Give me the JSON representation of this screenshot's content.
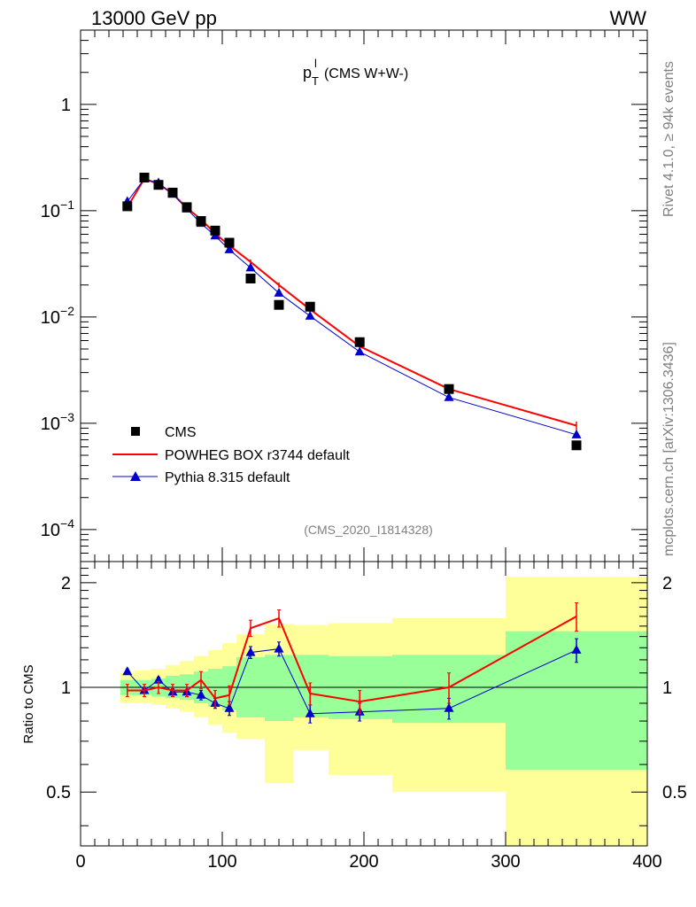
{
  "header": {
    "left": "13000 GeV pp",
    "right": "WW"
  },
  "side": {
    "rivet": "Rivet 4.1.0, ≥ 94k events",
    "source": "mcplots.cern.ch [arXiv:1306.3436]"
  },
  "chart_data": {
    "type": "line",
    "title_main": "p",
    "title_sup": "l",
    "title_sub": "T",
    "title_rest": "(CMS W+W-)",
    "analysis_tag": "(CMS_2020_I1814328)",
    "xlim": [
      0,
      400
    ],
    "ylim_main": [
      5e-05,
      5
    ],
    "ylim_ratio": [
      0.35,
      2.3
    ],
    "xticks": [
      "0",
      "100",
      "200",
      "300",
      "400"
    ],
    "yticks_main": [
      {
        "base": "1",
        "exp": ""
      },
      {
        "base": "10",
        "exp": "−1"
      },
      {
        "base": "10",
        "exp": "−2"
      },
      {
        "base": "10",
        "exp": "−3"
      },
      {
        "base": "10",
        "exp": "−4"
      }
    ],
    "yticks_ratio": [
      "2",
      "1",
      "0.5"
    ],
    "ratio_ylabel": "Ratio to CMS",
    "legend": {
      "position": "bottom-left",
      "entries": [
        "CMS",
        "POWHEG BOX r3744 default",
        "Pythia 8.315 default"
      ]
    },
    "colors": {
      "data": "#000000",
      "powheg": "#ff0000",
      "pythia": "#0000cc",
      "band_inner": "#99ff99",
      "band_outer": "#ffff99"
    },
    "bins": [
      [
        28,
        38
      ],
      [
        38,
        50
      ],
      [
        50,
        60
      ],
      [
        60,
        70
      ],
      [
        70,
        80
      ],
      [
        80,
        90
      ],
      [
        90,
        100
      ],
      [
        100,
        110
      ],
      [
        110,
        130
      ],
      [
        130,
        150
      ],
      [
        150,
        175
      ],
      [
        175,
        220
      ],
      [
        220,
        300
      ],
      [
        300,
        400
      ]
    ],
    "x": [
      33,
      45,
      55,
      65,
      75,
      85,
      95,
      105,
      120,
      140,
      162,
      197,
      260,
      350
    ],
    "series": [
      {
        "name": "CMS",
        "values": [
          0.11,
          0.205,
          0.175,
          0.148,
          0.108,
          0.08,
          0.065,
          0.05,
          0.023,
          0.013,
          0.0125,
          0.0058,
          0.0021,
          0.00062
        ]
      },
      {
        "name": "POWHEG BOX r3744 default",
        "values": [
          0.108,
          0.2,
          0.178,
          0.145,
          0.106,
          0.083,
          0.061,
          0.047,
          0.033,
          0.02,
          0.0118,
          0.0053,
          0.0021,
          0.00095
        ],
        "ratio": [
          0.98,
          0.98,
          1.0,
          0.98,
          0.98,
          1.05,
          0.93,
          0.95,
          1.48,
          1.58,
          0.96,
          0.91,
          1.0,
          1.6
        ],
        "ratio_err": [
          0.04,
          0.04,
          0.04,
          0.04,
          0.04,
          0.06,
          0.05,
          0.06,
          0.08,
          0.09,
          0.07,
          0.07,
          0.1,
          0.15
        ]
      },
      {
        "name": "Pythia 8.315 default",
        "values": [
          0.122,
          0.199,
          0.183,
          0.143,
          0.104,
          0.076,
          0.058,
          0.043,
          0.029,
          0.0168,
          0.0102,
          0.0047,
          0.00175,
          0.00078
        ],
        "ratio": [
          1.11,
          0.98,
          1.05,
          0.97,
          0.97,
          0.95,
          0.9,
          0.87,
          1.26,
          1.29,
          0.84,
          0.85,
          0.87,
          1.28
        ],
        "ratio_err": [
          0.02,
          0.02,
          0.02,
          0.02,
          0.03,
          0.03,
          0.03,
          0.04,
          0.05,
          0.06,
          0.05,
          0.05,
          0.06,
          0.1
        ]
      }
    ],
    "band_inner": [
      [
        0.95,
        1.05
      ],
      [
        0.95,
        1.05
      ],
      [
        0.94,
        1.06
      ],
      [
        0.93,
        1.08
      ],
      [
        0.92,
        1.09
      ],
      [
        0.9,
        1.11
      ],
      [
        0.88,
        1.13
      ],
      [
        0.86,
        1.15
      ],
      [
        0.82,
        1.22
      ],
      [
        0.8,
        1.24
      ],
      [
        0.82,
        1.24
      ],
      [
        0.81,
        1.23
      ],
      [
        0.79,
        1.24
      ],
      [
        0.58,
        1.45
      ]
    ],
    "band_outer": [
      [
        0.9,
        1.1
      ],
      [
        0.9,
        1.12
      ],
      [
        0.89,
        1.13
      ],
      [
        0.87,
        1.16
      ],
      [
        0.85,
        1.19
      ],
      [
        0.82,
        1.23
      ],
      [
        0.78,
        1.28
      ],
      [
        0.74,
        1.34
      ],
      [
        0.71,
        1.42
      ],
      [
        0.53,
        1.52
      ],
      [
        0.66,
        1.51
      ],
      [
        0.56,
        1.53
      ],
      [
        0.5,
        1.58
      ],
      [
        0.35,
        2.08
      ]
    ]
  }
}
